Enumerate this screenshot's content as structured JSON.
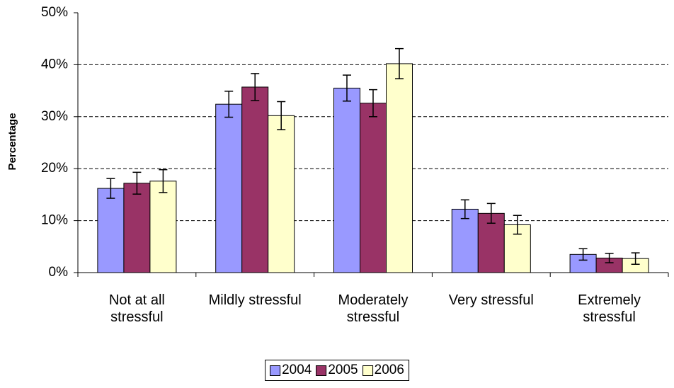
{
  "chart_data": {
    "type": "bar",
    "y_label": "Percentage",
    "categories": [
      "Not at all stressful",
      "Mildly stressful",
      "Moderately stressful",
      "Very stressful",
      "Extremely stressful"
    ],
    "series": [
      {
        "name": "2004",
        "color": "#9999ff",
        "values": [
          16.2,
          32.4,
          35.5,
          12.2,
          3.5
        ],
        "errors": [
          1.9,
          2.5,
          2.5,
          1.8,
          1.1
        ]
      },
      {
        "name": "2005",
        "color": "#993366",
        "values": [
          17.2,
          35.7,
          32.6,
          11.4,
          2.8
        ],
        "errors": [
          2.1,
          2.6,
          2.6,
          1.9,
          0.9
        ]
      },
      {
        "name": "2006",
        "color": "#ffffcc",
        "values": [
          17.6,
          30.2,
          40.2,
          9.2,
          2.7
        ],
        "errors": [
          2.2,
          2.7,
          2.9,
          1.8,
          1.1
        ]
      }
    ],
    "ylim": [
      0,
      50
    ],
    "yticks": [
      {
        "value": 0,
        "label": "0%"
      },
      {
        "value": 10,
        "label": "10%"
      },
      {
        "value": 20,
        "label": "20%"
      },
      {
        "value": 30,
        "label": "30%"
      },
      {
        "value": 40,
        "label": "40%"
      },
      {
        "value": 50,
        "label": "50%"
      }
    ],
    "grid": true,
    "legend": "bottom"
  }
}
